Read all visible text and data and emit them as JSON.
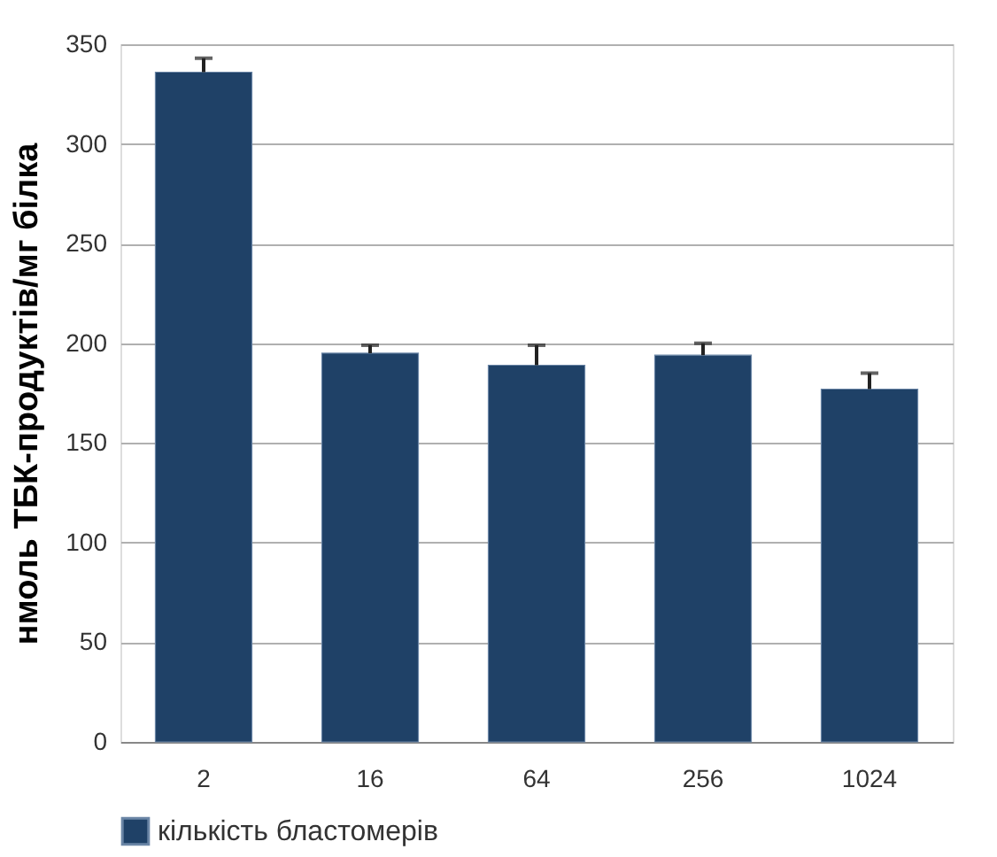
{
  "chart_data": {
    "type": "bar",
    "ylabel": "нмоль ТБК-продуктів/мг білка",
    "categories": [
      "2",
      "16",
      "64",
      "256",
      "1024"
    ],
    "series": [
      {
        "name": "кількість бластомерів",
        "color": "#1f4167",
        "values": [
          336,
          195,
          189,
          194,
          177
        ],
        "errors": [
          [
            336,
            343
          ],
          [
            195,
            199
          ],
          [
            189,
            199
          ],
          [
            194,
            200
          ],
          [
            177,
            185
          ]
        ]
      }
    ],
    "ylim": [
      0,
      350
    ],
    "yticks": [
      0,
      50,
      100,
      150,
      200,
      250,
      300,
      350
    ],
    "grid": "y",
    "legend": "bottom"
  }
}
